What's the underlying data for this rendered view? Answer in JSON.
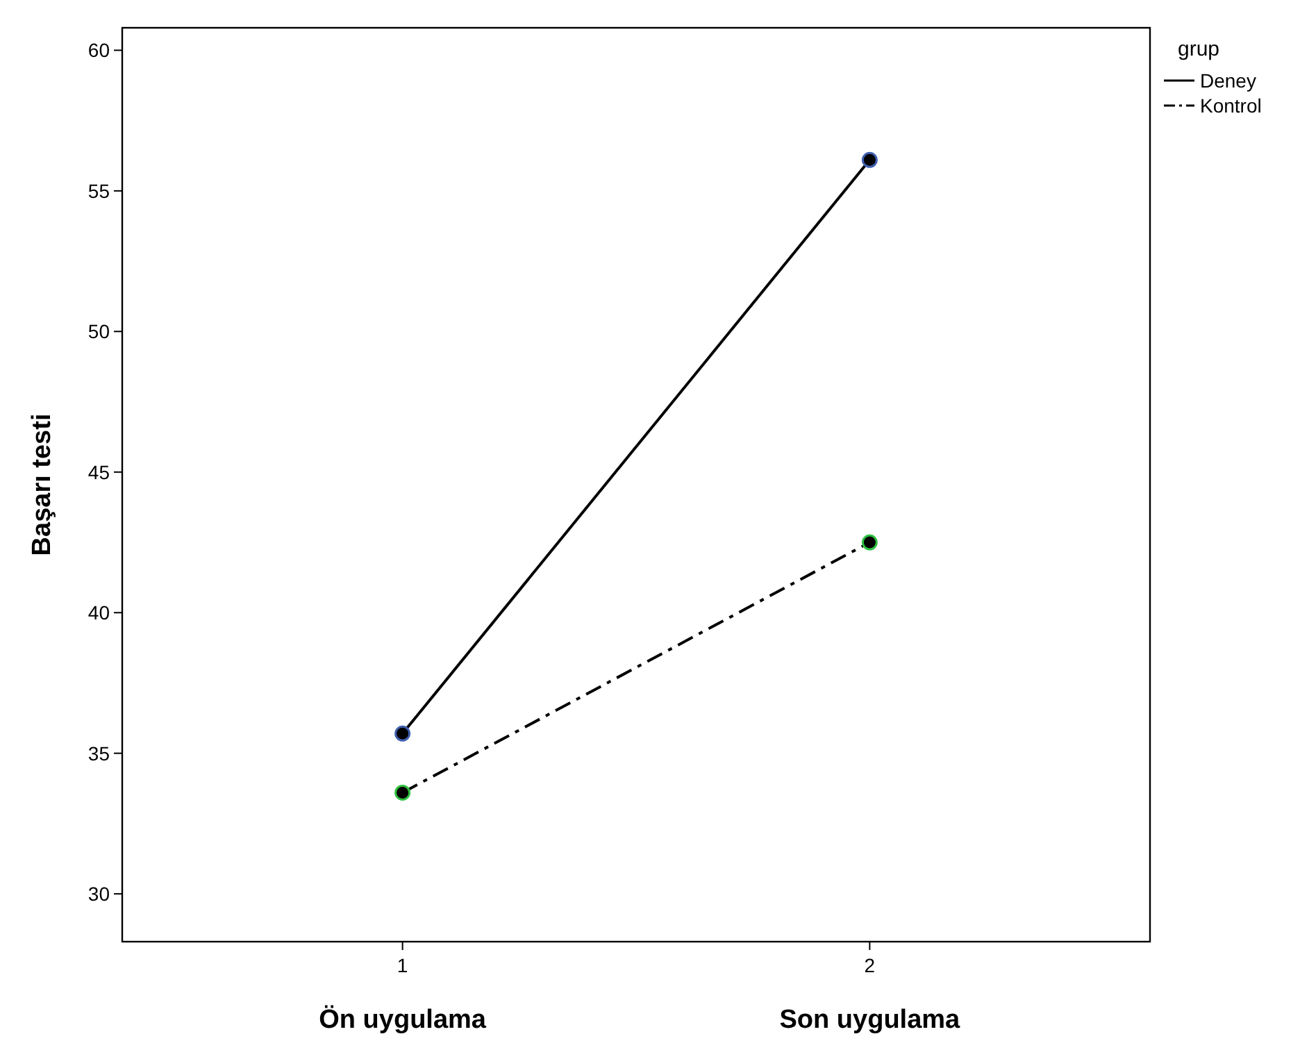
{
  "chart_data": {
    "type": "line",
    "ylabel": "Başarı testi",
    "legend_title": "grup",
    "legend": "top right",
    "marker": "circle",
    "grid": false,
    "x": [
      1,
      2
    ],
    "xlim": [
      0.4,
      2.6
    ],
    "xticks": [
      1,
      2
    ],
    "ylim": [
      28.3,
      60.8
    ],
    "yticks": [
      30,
      35,
      40,
      45,
      50,
      55,
      60
    ],
    "series": [
      {
        "name": "Deney",
        "color": "#000000",
        "values": [
          35.7,
          56.1
        ],
        "line_style": "solid"
      },
      {
        "name": "Kontrol",
        "color": "#000000",
        "values": [
          33.6,
          42.5
        ],
        "line_style": "dashed"
      }
    ],
    "annotations": [
      "Ön uygulama",
      "Son uygulama"
    ]
  }
}
